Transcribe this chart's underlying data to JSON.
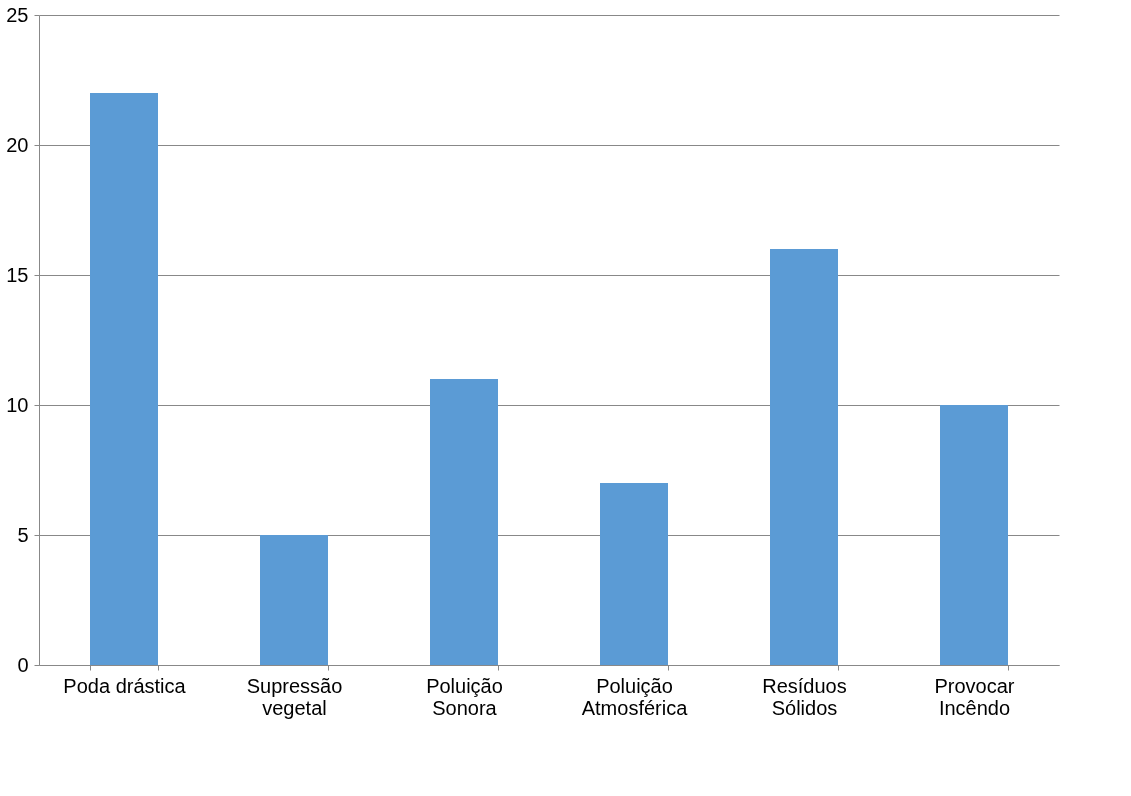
{
  "chart_data": {
    "type": "bar",
    "categories": [
      "Poda drástica",
      "Supressão\nvegetal",
      "Poluição\nSonora",
      "Poluição\nAtmosférica",
      "Resíduos\nSólidos",
      "Provocar\nIncêndo"
    ],
    "values": [
      22,
      5,
      11,
      7,
      16,
      10
    ],
    "color": "#5b9bd5",
    "ylim": [
      0,
      25
    ],
    "yticks": [
      0,
      5,
      10,
      15,
      20,
      25
    ],
    "grid": "y"
  }
}
